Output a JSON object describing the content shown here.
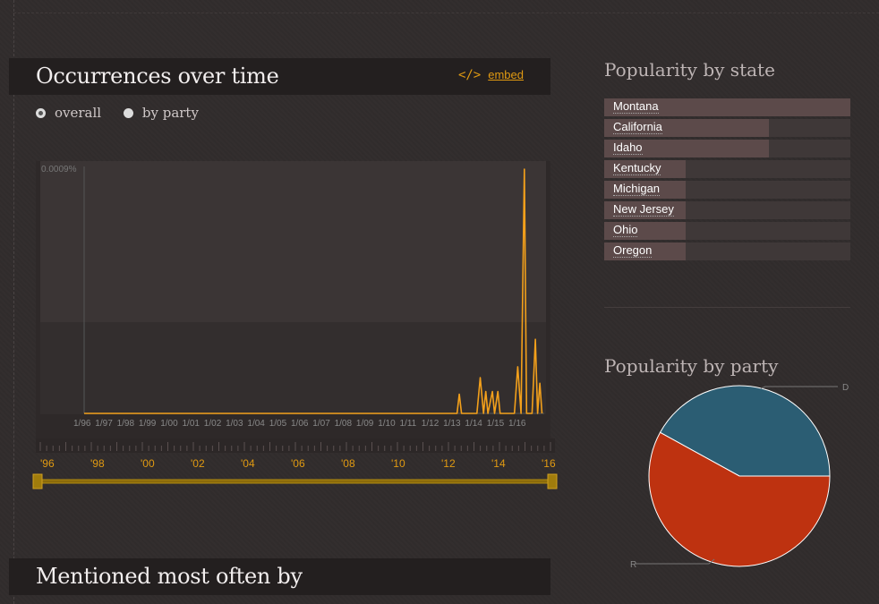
{
  "occurrences": {
    "title": "Occurrences over time",
    "embed_icon": "</>",
    "embed_label": "embed",
    "radio_overall": "overall",
    "radio_party": "by party"
  },
  "mentioned": {
    "title": "Mentioned most often by"
  },
  "colors": {
    "line": "#f3a01b",
    "accent": "#e09a12",
    "democrat": "#2b5d73",
    "republican": "#be3210"
  },
  "chart_data": [
    {
      "type": "line",
      "title": "",
      "ymax_label": "0.0009%",
      "ylim": [
        0,
        0.0009
      ],
      "x_labels": [
        "1/96",
        "1/97",
        "1/98",
        "1/99",
        "1/00",
        "1/01",
        "1/02",
        "1/03",
        "1/04",
        "1/05",
        "1/06",
        "1/07",
        "1/08",
        "1/09",
        "1/10",
        "1/11",
        "1/12",
        "1/13",
        "1/14",
        "1/15",
        "1/16"
      ],
      "series": [
        {
          "values": [
            {
              "x": 1996.0,
              "y": 0
            },
            {
              "x": 2012.9,
              "y": 0
            },
            {
              "x": 2013.0,
              "y": 7e-05
            },
            {
              "x": 2013.1,
              "y": 0
            },
            {
              "x": 2013.8,
              "y": 0
            },
            {
              "x": 2013.95,
              "y": 0.00013
            },
            {
              "x": 2014.1,
              "y": 0
            },
            {
              "x": 2014.2,
              "y": 8e-05
            },
            {
              "x": 2014.3,
              "y": 0
            },
            {
              "x": 2014.5,
              "y": 8e-05
            },
            {
              "x": 2014.6,
              "y": 0
            },
            {
              "x": 2014.75,
              "y": 8e-05
            },
            {
              "x": 2014.85,
              "y": 0
            },
            {
              "x": 2015.5,
              "y": 0
            },
            {
              "x": 2015.65,
              "y": 0.00017
            },
            {
              "x": 2015.8,
              "y": 0
            },
            {
              "x": 2015.95,
              "y": 0.00089
            },
            {
              "x": 2016.05,
              "y": 0
            },
            {
              "x": 2016.3,
              "y": 0
            },
            {
              "x": 2016.45,
              "y": 0.00027
            },
            {
              "x": 2016.55,
              "y": 0
            },
            {
              "x": 2016.65,
              "y": 0.00011
            },
            {
              "x": 2016.75,
              "y": 0
            }
          ]
        }
      ],
      "grid": false
    },
    {
      "type": "pie",
      "title": "Popularity by party",
      "slices": [
        {
          "label": "D",
          "value": 42
        },
        {
          "label": "R",
          "value": 58
        }
      ]
    }
  ],
  "timeline": {
    "labels": [
      "'96",
      "'98",
      "'00",
      "'02",
      "'04",
      "'06",
      "'08",
      "'10",
      "'12",
      "'14",
      "'16"
    ],
    "range": [
      1996,
      2016
    ]
  },
  "states": {
    "title": "Popularity by state",
    "items": [
      {
        "name": "Montana",
        "value": 1.0
      },
      {
        "name": "California",
        "value": 0.67
      },
      {
        "name": "Idaho",
        "value": 0.67
      },
      {
        "name": "Kentucky",
        "value": 0.33
      },
      {
        "name": "Michigan",
        "value": 0.33
      },
      {
        "name": "New Jersey",
        "value": 0.33
      },
      {
        "name": "Ohio",
        "value": 0.33
      },
      {
        "name": "Oregon",
        "value": 0.33
      }
    ]
  },
  "party": {
    "title": "Popularity by party"
  }
}
